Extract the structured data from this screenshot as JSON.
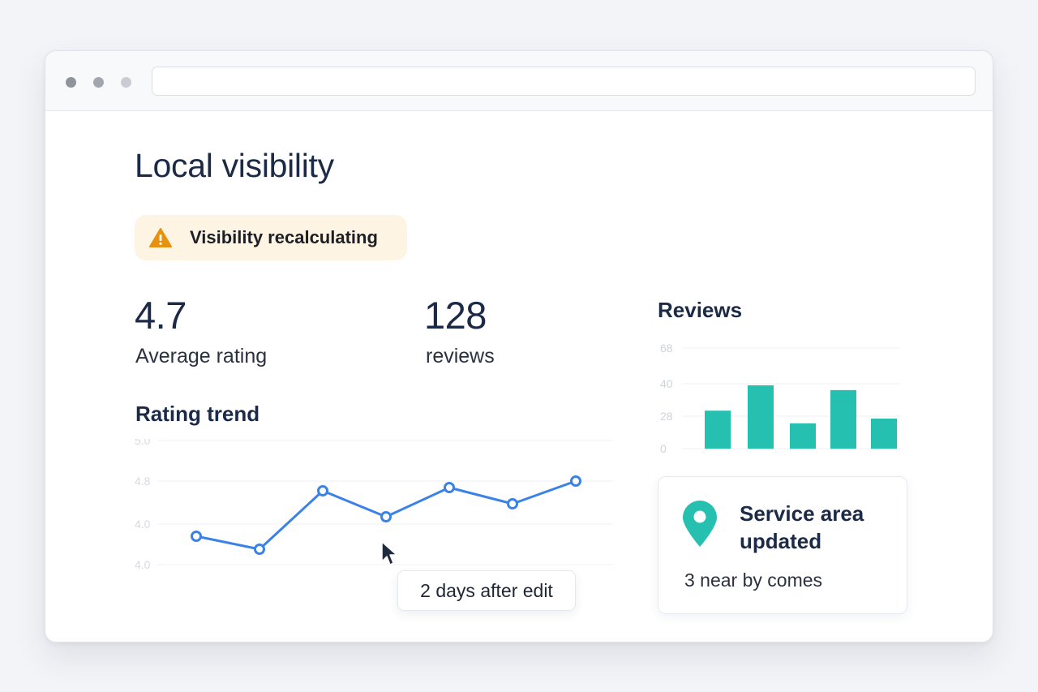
{
  "browser": {
    "url": ""
  },
  "page": {
    "title": "Local visibility"
  },
  "alert": {
    "icon": "warning-icon",
    "text": "Visibility recalculating",
    "color": "#e8910f"
  },
  "stats": [
    {
      "value": "4.7",
      "label": "Average rating"
    },
    {
      "value": "128",
      "label": "reviews"
    }
  ],
  "trend": {
    "title": "Rating trend",
    "tooltip": "2 days after edit",
    "line_color": "#3b82e6"
  },
  "reviews": {
    "title": "Reviews",
    "bar_color": "#25c0b0"
  },
  "service": {
    "icon": "map-pin-icon",
    "title": "Service area updated",
    "subtitle": "3 near by comes",
    "color": "#25c0b0"
  },
  "chart_data": [
    {
      "type": "line",
      "title": "Rating trend",
      "y_ticks": [
        "5.0",
        "4.8",
        "4.0",
        "4.0"
      ],
      "values": [
        4.5,
        4.46,
        4.64,
        4.56,
        4.65,
        4.6,
        4.67
      ],
      "grid": true
    },
    {
      "type": "bar",
      "title": "Reviews",
      "y_ticks": [
        "0",
        "28",
        "40",
        "68"
      ],
      "values": [
        24,
        40,
        16,
        37,
        19
      ],
      "ylim": [
        0,
        60
      ],
      "grid": true
    }
  ]
}
